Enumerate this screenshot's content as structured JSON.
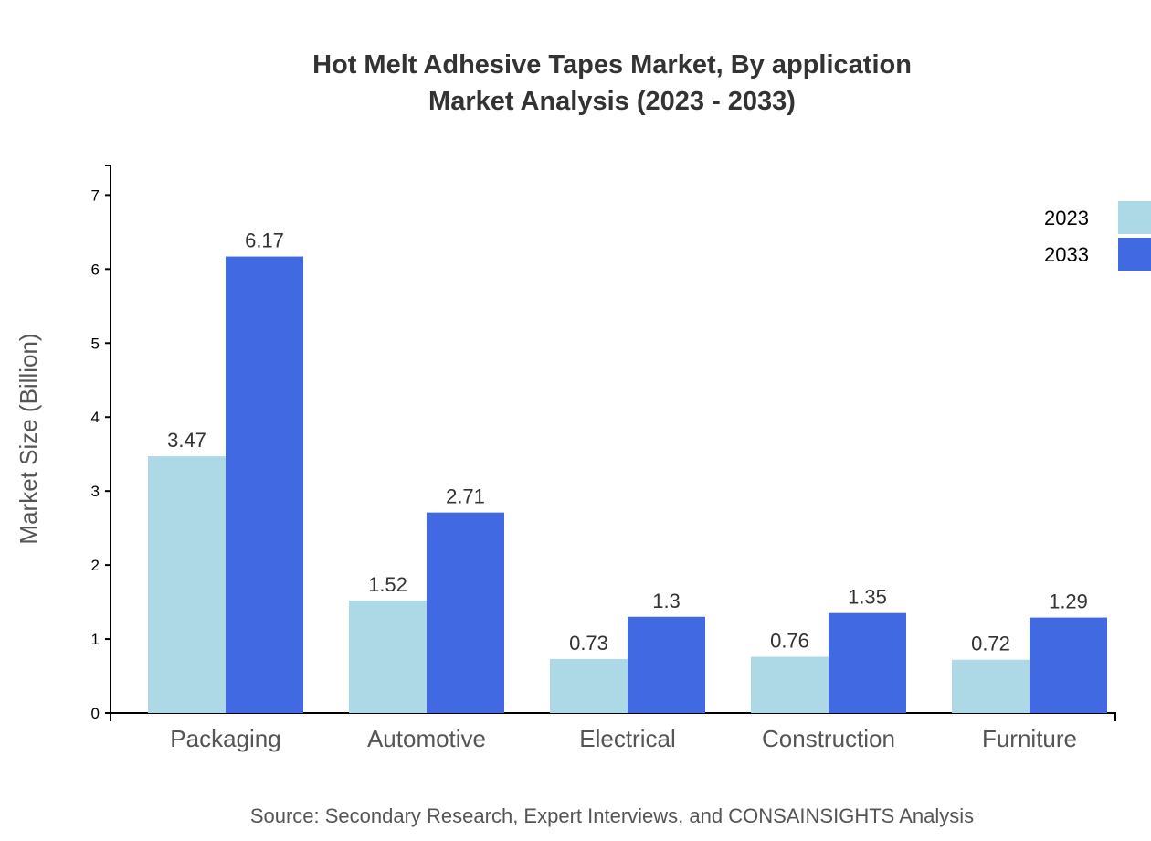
{
  "chart_data": {
    "type": "bar",
    "title": "Hot Melt Adhesive Tapes Market, By application",
    "subtitle": "Market Analysis (2023 - 2033)",
    "xlabel": "",
    "ylabel": "Market Size (Billion)",
    "ylim": [
      0,
      7.4
    ],
    "yticks": [
      0,
      1,
      2,
      3,
      4,
      5,
      6,
      7
    ],
    "categories": [
      "Packaging",
      "Automotive",
      "Electrical",
      "Construction",
      "Furniture"
    ],
    "series": [
      {
        "name": "2023",
        "color": "#add8e6",
        "values": [
          3.47,
          1.52,
          0.73,
          0.76,
          0.72
        ]
      },
      {
        "name": "2033",
        "color": "#4169e1",
        "values": [
          6.17,
          2.71,
          1.3,
          1.35,
          1.29
        ]
      }
    ],
    "legend_position": "top-right",
    "grid": false,
    "source": "Source: Secondary Research, Expert Interviews, and CONSAINSIGHTS Analysis"
  }
}
